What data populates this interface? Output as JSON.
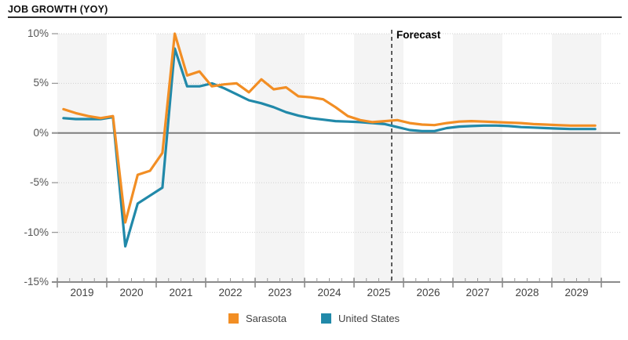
{
  "header": {
    "title": "JOB GROWTH (YOY)"
  },
  "chart": {
    "forecast_label": "Forecast",
    "y_tick_labels": [
      "10%",
      "5%",
      "0%",
      "-5%",
      "-10%",
      "-15%"
    ],
    "x_tick_labels": [
      "2019",
      "2020",
      "2021",
      "2022",
      "2023",
      "2024",
      "2025",
      "2026",
      "2027",
      "2028",
      "2029"
    ],
    "colors": {
      "sarasota": "#F28E24",
      "united_states": "#2189A9",
      "zero_line": "#7d7d7d",
      "axis": "#8a8a8a",
      "grid": "#d0d0d0",
      "band": "#f4f4f4",
      "forecast_line": "#4d4d4d"
    }
  },
  "legend": {
    "items": [
      {
        "name": "Sarasota",
        "color": "#F28E24"
      },
      {
        "name": "United States",
        "color": "#2189A9"
      }
    ]
  },
  "chart_data": {
    "type": "line",
    "title": "JOB GROWTH (YOY)",
    "x_unit": "quarter",
    "x_start_year": 2019,
    "x_end_year": 2029,
    "quarters_per_year": 4,
    "ylim": [
      -15,
      10
    ],
    "y_ticks": [
      10,
      5,
      0,
      -5,
      -10,
      -15
    ],
    "grid": "dotted-horizontal",
    "shaded_year_bands": [
      2019,
      2021,
      2023,
      2025,
      2027,
      2029
    ],
    "annotation": "Forecast",
    "forecast_start_index": 27,
    "legend_position": "bottom-center",
    "series": [
      {
        "name": "Sarasota",
        "color": "#F28E24",
        "values": [
          2.4,
          2.0,
          1.7,
          1.5,
          1.7,
          -9.0,
          -4.2,
          -3.8,
          -2.0,
          10.0,
          5.8,
          6.2,
          4.7,
          4.9,
          5.0,
          4.1,
          5.4,
          4.4,
          4.6,
          3.7,
          3.6,
          3.4,
          2.6,
          1.7,
          1.3,
          1.1,
          1.2,
          1.3,
          1.0,
          0.85,
          0.8,
          1.0,
          1.15,
          1.2,
          1.15,
          1.1,
          1.05,
          1.0,
          0.9,
          0.85,
          0.8,
          0.75,
          0.75,
          0.75
        ]
      },
      {
        "name": "United States",
        "color": "#2189A9",
        "values": [
          1.5,
          1.4,
          1.4,
          1.4,
          1.6,
          -11.4,
          -7.1,
          -6.3,
          -5.5,
          8.5,
          4.7,
          4.7,
          5.0,
          4.5,
          3.9,
          3.3,
          3.0,
          2.6,
          2.1,
          1.75,
          1.5,
          1.35,
          1.2,
          1.15,
          1.1,
          1.0,
          0.9,
          0.6,
          0.3,
          0.2,
          0.2,
          0.5,
          0.65,
          0.7,
          0.75,
          0.75,
          0.7,
          0.6,
          0.55,
          0.5,
          0.45,
          0.4,
          0.4,
          0.4
        ]
      }
    ]
  }
}
